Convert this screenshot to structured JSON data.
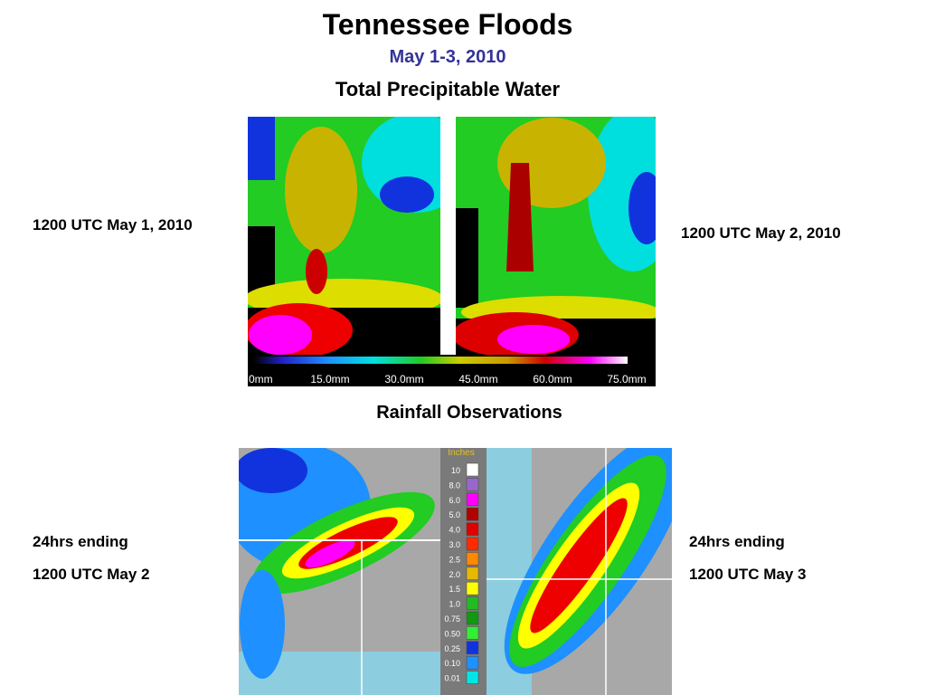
{
  "header": {
    "title": "Tennessee Floods",
    "subtitle": "May 1-3, 2010"
  },
  "tpw": {
    "heading": "Total Precipitable Water",
    "captions": [
      "1200 UTC May 1, 2010",
      "1200 UTC May 2, 2010"
    ],
    "scale_labels": [
      "0mm",
      "15.0mm",
      "30.0mm",
      "45.0mm",
      "60.0mm",
      "75.0mm"
    ]
  },
  "rainfall": {
    "heading": "Rainfall Observations",
    "left_caption": [
      "24hrs ending",
      "1200 UTC May 2"
    ],
    "right_caption": [
      "24hrs ending",
      "1200 UTC May 3"
    ],
    "legend": {
      "title": "Inches",
      "labels": [
        "10",
        "8.0",
        "6.0",
        "5.0",
        "4.0",
        "3.0",
        "2.5",
        "2.0",
        "1.5",
        "1.0",
        "0.75",
        "0.50",
        "0.25",
        "0.10",
        "0.01"
      ],
      "colors": [
        "#ffffff",
        "#9966cc",
        "#ff00ff",
        "#b00000",
        "#e00000",
        "#ff2a00",
        "#ff8800",
        "#e6b800",
        "#ffff00",
        "#22bb22",
        "#119911",
        "#33ee33",
        "#1133dd",
        "#1e90ff",
        "#00e5e5"
      ]
    }
  }
}
